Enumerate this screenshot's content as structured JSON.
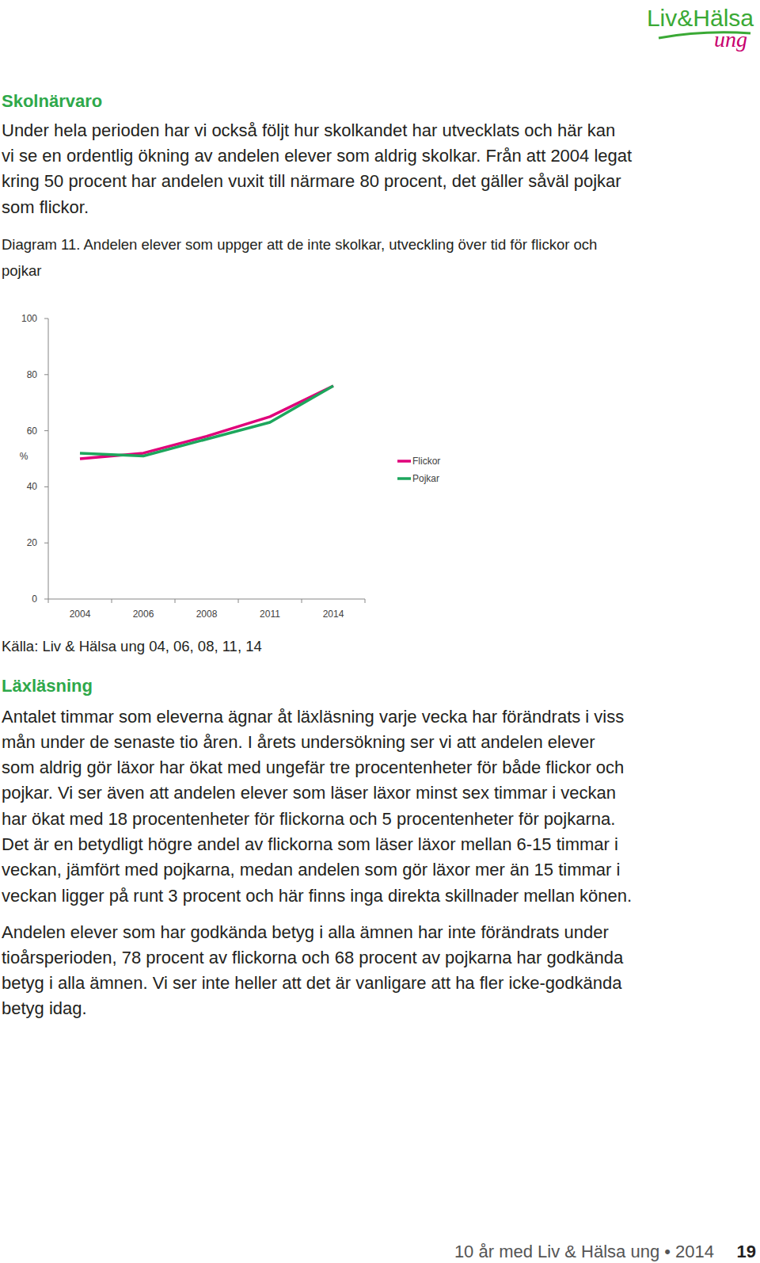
{
  "logo": {
    "title": "Liv&Hälsa",
    "subtitle": "ung"
  },
  "sections": [
    {
      "heading": "Skolnärvaro",
      "paragraphs": [
        {
          "lines": [
            "Under hela perioden har vi också följt hur skolkandet har utvecklats och här kan",
            "vi se en ordentlig ökning av andelen elever som aldrig skolkar. Från att 2004 legat",
            "kring 50 procent har andelen vuxit till närmare 80 procent, det gäller såväl pojkar",
            "som flickor."
          ]
        }
      ]
    },
    {
      "heading": "Läxläsning",
      "paragraphs": [
        {
          "lines": [
            "Antalet timmar som eleverna ägnar åt läxläsning varje vecka har förändrats i viss",
            "mån under de senaste tio åren. I årets undersökning ser vi att andelen elever",
            "som aldrig gör läxor har ökat med ungefär tre procentenheter för både flickor och",
            "pojkar. Vi ser även att andelen elever som läser läxor minst sex timmar i veckan",
            "har ökat med 18 procentenheter för flickorna och 5 procentenheter för pojkarna.",
            "Det är en betydligt högre andel av flickorna som läser läxor mellan 6-15 timmar i",
            "veckan, jämfört med pojkarna, medan andelen som gör läxor mer än 15 timmar i",
            "veckan ligger på runt 3 procent och här finns inga direkta skillnader mellan könen."
          ]
        },
        {
          "lines": [
            "Andelen elever som har godkända betyg i alla ämnen har inte förändrats under",
            "tioårsperioden, 78 procent av flickorna och 68 procent av pojkarna har godkända",
            "betyg i alla ämnen. Vi ser inte heller att det är vanligare att ha fler icke-godkända",
            "betyg idag."
          ]
        }
      ]
    }
  ],
  "caption": {
    "lines": [
      "Diagram 11. Andelen elever som uppger att de inte skolkar, utveckling över tid för flickor och",
      "pojkar"
    ]
  },
  "chart_data": {
    "type": "line",
    "y_label": "%",
    "categories": [
      "2004",
      "2006",
      "2008",
      "2011",
      "2014"
    ],
    "series": [
      {
        "name": "Flickor",
        "color": "#e0007a",
        "values": [
          50,
          52,
          58,
          65,
          76
        ]
      },
      {
        "name": "Pojkar",
        "color": "#1da65c",
        "values": [
          52,
          51,
          57,
          63,
          76
        ]
      }
    ],
    "ylim": [
      0,
      100
    ],
    "yticks": [
      0,
      20,
      40,
      60,
      80,
      100
    ],
    "grid": false,
    "legend": "right"
  },
  "source": "Källa: Liv & Hälsa ung 04, 06, 08, 11, 14",
  "footer": {
    "text": "10 år med Liv & Hälsa ung • 2014",
    "page": "19"
  }
}
